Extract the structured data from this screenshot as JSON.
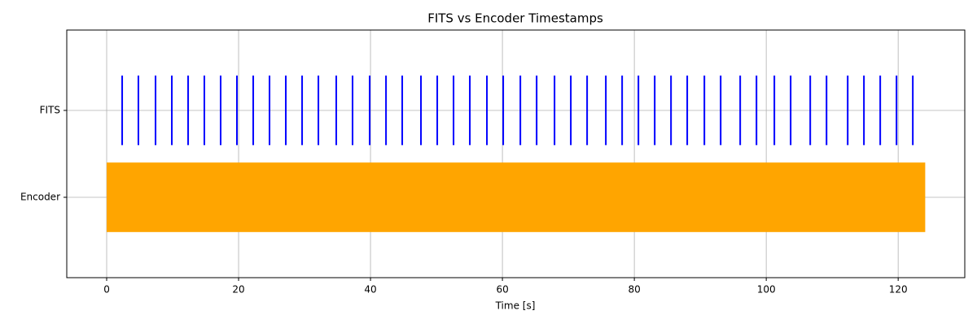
{
  "chart_data": {
    "type": "eventplot",
    "title": "FITS vs Encoder Timestamps",
    "xlabel": "Time [s]",
    "series": [
      {
        "name": "Encoder",
        "color": "#ffa500",
        "span": [
          0,
          124.1
        ]
      },
      {
        "name": "FITS",
        "color": "#0000ff",
        "values": [
          2.35,
          4.81,
          7.41,
          9.88,
          12.35,
          14.81,
          17.28,
          19.75,
          22.22,
          24.69,
          27.16,
          29.63,
          32.1,
          34.81,
          37.28,
          39.88,
          42.35,
          44.81,
          47.65,
          50.12,
          52.59,
          55.06,
          57.65,
          60.12,
          62.72,
          65.19,
          67.9,
          70.37,
          72.84,
          75.68,
          78.15,
          80.62,
          83.09,
          85.56,
          88.02,
          90.62,
          93.09,
          96.05,
          98.52,
          101.23,
          103.7,
          106.67,
          109.14,
          112.35,
          114.81,
          117.28,
          119.75,
          122.22
        ]
      }
    ],
    "xlim": [
      -6.05,
      130.1
    ],
    "xticks": [
      0,
      20,
      40,
      60,
      80,
      100,
      120
    ],
    "ylim": [
      -0.925,
      1.925
    ],
    "linelength": 0.8,
    "grid": true
  }
}
